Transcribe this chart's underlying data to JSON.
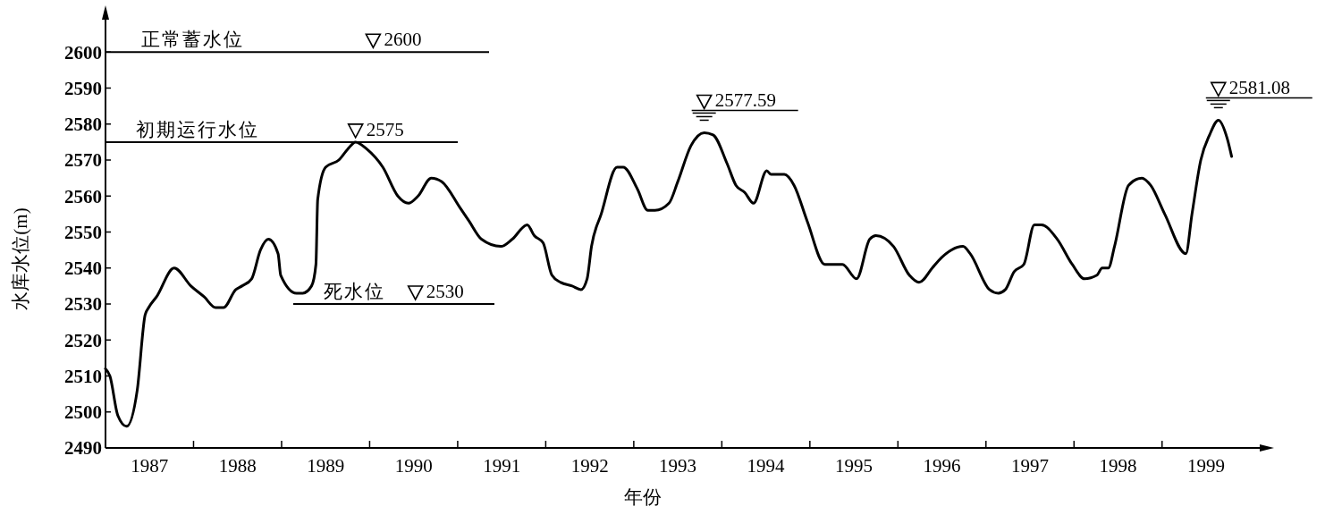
{
  "chart_data": {
    "type": "line",
    "xlabel": "年份",
    "ylabel": "水库水位(m)",
    "color": "#000000",
    "line_style": "solid",
    "xlim": [
      1987,
      2000.15
    ],
    "ylim": [
      2490,
      2610
    ],
    "xticks": [
      {
        "value": 1987.5,
        "label": "1987"
      },
      {
        "value": 1988,
        "label": null
      },
      {
        "value": 1988.5,
        "label": "1988"
      },
      {
        "value": 1989,
        "label": null
      },
      {
        "value": 1989.5,
        "label": "1989"
      },
      {
        "value": 1990,
        "label": null
      },
      {
        "value": 1990.5,
        "label": "1990"
      },
      {
        "value": 1991,
        "label": null
      },
      {
        "value": 1991.5,
        "label": "1991"
      },
      {
        "value": 1992,
        "label": null
      },
      {
        "value": 1992.5,
        "label": "1992"
      },
      {
        "value": 1993,
        "label": null
      },
      {
        "value": 1993.5,
        "label": "1993"
      },
      {
        "value": 1994,
        "label": null
      },
      {
        "value": 1994.5,
        "label": "1994"
      },
      {
        "value": 1995,
        "label": null
      },
      {
        "value": 1995.5,
        "label": "1995"
      },
      {
        "value": 1996,
        "label": null
      },
      {
        "value": 1996.5,
        "label": "1996"
      },
      {
        "value": 1997,
        "label": null
      },
      {
        "value": 1997.5,
        "label": "1997"
      },
      {
        "value": 1998,
        "label": null
      },
      {
        "value": 1998.5,
        "label": "1998"
      },
      {
        "value": 1999,
        "label": null
      },
      {
        "value": 1999.5,
        "label": "1999"
      }
    ],
    "yticks": [
      2490,
      2500,
      2510,
      2520,
      2530,
      2540,
      2550,
      2560,
      2570,
      2580,
      2590,
      2600
    ],
    "x": [
      1987.0,
      1987.05,
      1987.14,
      1987.24,
      1987.36,
      1987.45,
      1987.49,
      1987.58,
      1987.78,
      1987.97,
      1988.12,
      1988.25,
      1988.34,
      1988.48,
      1988.55,
      1988.66,
      1988.76,
      1988.85,
      1988.96,
      1988.99,
      1989.17,
      1989.24,
      1989.34,
      1989.39,
      1989.41,
      1989.5,
      1989.65,
      1989.75,
      1989.84,
      1989.97,
      1990.15,
      1990.32,
      1990.44,
      1990.55,
      1990.7,
      1990.82,
      1991.02,
      1991.13,
      1991.27,
      1991.49,
      1991.62,
      1991.79,
      1991.87,
      1991.97,
      1992.07,
      1992.17,
      1992.3,
      1992.4,
      1992.47,
      1992.52,
      1992.63,
      1992.81,
      1992.88,
      1993.04,
      1993.16,
      1993.24,
      1993.4,
      1993.5,
      1993.65,
      1993.8,
      1993.9,
      1994.06,
      1994.16,
      1994.26,
      1994.36,
      1994.51,
      1994.56,
      1994.71,
      1994.82,
      1994.97,
      1995.17,
      1995.37,
      1995.53,
      1995.68,
      1995.75,
      1995.95,
      1996.13,
      1996.24,
      1996.39,
      1996.46,
      1996.74,
      1996.82,
      1997.04,
      1997.14,
      1997.22,
      1997.32,
      1997.43,
      1997.55,
      1997.63,
      1997.81,
      1997.98,
      1998.12,
      1998.26,
      1998.32,
      1998.39,
      1998.46,
      1998.62,
      1998.77,
      1998.87,
      1999.03,
      1999.27,
      1999.34,
      1999.44,
      1999.54,
      1999.64,
      1999.74,
      1999.79
    ],
    "values": [
      2512,
      2510,
      2499,
      2496,
      2506,
      2527,
      2529,
      2532,
      2540,
      2535,
      2532,
      2529,
      2529,
      2534,
      2535,
      2537,
      2545,
      2548,
      2544,
      2538,
      2533,
      2533,
      2535,
      2541,
      2559,
      2568,
      2570,
      2573,
      2575,
      2573,
      2568,
      2560,
      2558,
      2560,
      2565,
      2564,
      2557,
      2553,
      2548,
      2546,
      2548,
      2552,
      2549,
      2547,
      2538,
      2536,
      2535,
      2534,
      2537,
      2546,
      2555,
      2568,
      2568,
      2562,
      2556,
      2556,
      2558,
      2564,
      2574,
      2577.59,
      2577,
      2569,
      2563,
      2561,
      2558,
      2567,
      2566,
      2566,
      2563,
      2553,
      2541,
      2541,
      2537,
      2548,
      2549,
      2546,
      2538,
      2536,
      2540,
      2542,
      2546,
      2544,
      2534,
      2533,
      2534,
      2539,
      2541,
      2552,
      2552,
      2548,
      2541,
      2537,
      2538,
      2540,
      2540,
      2546,
      2563,
      2565,
      2563,
      2555,
      2544,
      2555,
      2570,
      2577,
      2581.08,
      2576,
      2571
    ],
    "ref_lines": [
      {
        "axis": "y",
        "value": 2600,
        "label": "正常蓄水位"
      },
      {
        "axis": "y",
        "value": 2575,
        "label": "初期运行水位"
      },
      {
        "axis": "y",
        "value": 2530,
        "label": "死水位"
      }
    ],
    "annotations": [
      {
        "text": "2600",
        "x": 1990.04,
        "y": 2600
      },
      {
        "text": "2575",
        "x": 1989.84,
        "y": 2575
      },
      {
        "text": "2530",
        "x": 1990.52,
        "y": 2530
      },
      {
        "text": "2577.59",
        "x": 1993.8,
        "y": 2577.59
      },
      {
        "text": "2581.08",
        "x": 1999.64,
        "y": 2581.08
      }
    ]
  }
}
